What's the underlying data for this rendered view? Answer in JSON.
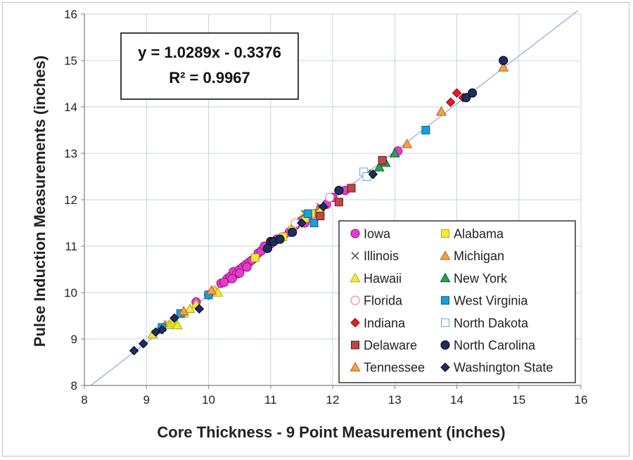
{
  "chart_data": {
    "type": "scatter",
    "xlabel": "Core Thickness - 9 Point Measurement (inches)",
    "ylabel": "Pulse Induction Measurements (inches)",
    "xlim": [
      8,
      16
    ],
    "ylim": [
      8,
      16
    ],
    "xticks": [
      "8",
      "9",
      "10",
      "11",
      "12",
      "13",
      "14",
      "15",
      "16"
    ],
    "yticks": [
      "8",
      "9",
      "10",
      "11",
      "12",
      "13",
      "14",
      "15",
      "16"
    ],
    "grid": true,
    "legend_position": "bottom-right",
    "annotation": {
      "equation": "y = 1.0289x - 0.3376",
      "r_squared": "R² = 0.9967"
    },
    "trendline": {
      "slope": 1.0289,
      "intercept": -0.3376,
      "x_range": [
        8.1,
        15.95
      ],
      "color": "#8ea9d8"
    },
    "series": [
      {
        "name": "Iowa",
        "marker": "circle",
        "color": "#e040c8",
        "filled": true,
        "points": [
          [
            10.2,
            10.2
          ],
          [
            10.3,
            10.3
          ],
          [
            10.35,
            10.35
          ],
          [
            10.4,
            10.45
          ],
          [
            10.45,
            10.4
          ],
          [
            10.5,
            10.5
          ],
          [
            10.55,
            10.55
          ],
          [
            10.6,
            10.6
          ],
          [
            10.65,
            10.65
          ],
          [
            10.7,
            10.7
          ],
          [
            10.8,
            10.85
          ],
          [
            10.85,
            10.9
          ],
          [
            10.9,
            11.0
          ],
          [
            11.0,
            11.05
          ],
          [
            11.1,
            11.15
          ],
          [
            11.2,
            11.2
          ],
          [
            11.3,
            11.3
          ],
          [
            11.4,
            11.45
          ],
          [
            11.5,
            11.55
          ],
          [
            11.6,
            11.6
          ],
          [
            11.7,
            11.7
          ],
          [
            11.8,
            11.8
          ],
          [
            11.9,
            11.9
          ],
          [
            12.0,
            12.05
          ],
          [
            12.2,
            12.2
          ],
          [
            13.05,
            13.05
          ],
          [
            10.5,
            10.42
          ],
          [
            10.38,
            10.3
          ],
          [
            10.62,
            10.55
          ],
          [
            10.25,
            10.22
          ],
          [
            9.8,
            9.8
          ],
          [
            10.0,
            9.95
          ],
          [
            11.55,
            11.5
          ],
          [
            10.75,
            10.75
          ]
        ]
      },
      {
        "name": "Alabama",
        "marker": "square",
        "color": "#f2ea3a",
        "filled": true,
        "points": [
          [
            10.75,
            10.75
          ],
          [
            11.2,
            11.2
          ],
          [
            11.35,
            11.35
          ],
          [
            11.55,
            11.6
          ],
          [
            11.65,
            11.7
          ],
          [
            11.8,
            11.75
          ]
        ]
      },
      {
        "name": "Illinois",
        "marker": "x",
        "color": "#555555",
        "filled": false,
        "points": [
          [
            11.55,
            11.7
          ],
          [
            11.8,
            11.85
          ]
        ]
      },
      {
        "name": "Michigan",
        "marker": "triangle",
        "color": "#f5a04a",
        "filled": true,
        "points": [
          [
            9.1,
            9.1
          ],
          [
            9.3,
            9.3
          ],
          [
            9.45,
            9.4
          ],
          [
            9.7,
            9.65
          ],
          [
            10.1,
            10.05
          ],
          [
            13.2,
            13.2
          ],
          [
            13.75,
            13.9
          ],
          [
            14.75,
            14.85
          ]
        ]
      },
      {
        "name": "Hawaii",
        "marker": "triangle",
        "color": "#f2ea3a",
        "filled": true,
        "points": [
          [
            9.1,
            9.1
          ],
          [
            9.2,
            9.2
          ],
          [
            9.35,
            9.3
          ],
          [
            9.4,
            9.35
          ],
          [
            9.45,
            9.4
          ],
          [
            9.5,
            9.3
          ],
          [
            9.6,
            9.55
          ],
          [
            9.7,
            9.65
          ],
          [
            9.8,
            9.75
          ],
          [
            10.1,
            10.05
          ],
          [
            10.15,
            10.0
          ]
        ]
      },
      {
        "name": "New York",
        "marker": "triangle",
        "color": "#2e9e5a",
        "filled": true,
        "points": [
          [
            12.6,
            12.55
          ],
          [
            12.75,
            12.7
          ],
          [
            12.85,
            12.8
          ],
          [
            13.0,
            13.0
          ]
        ]
      },
      {
        "name": "Florida",
        "marker": "circle",
        "color": "#e8707a",
        "filled": false,
        "points": [
          [
            11.4,
            11.5
          ],
          [
            11.95,
            12.05
          ]
        ]
      },
      {
        "name": "West Virginia",
        "marker": "square",
        "color": "#1e9ed8",
        "filled": true,
        "points": [
          [
            9.25,
            9.25
          ],
          [
            9.55,
            9.55
          ],
          [
            10.0,
            9.95
          ],
          [
            11.6,
            11.7
          ],
          [
            11.7,
            11.5
          ],
          [
            13.5,
            13.5
          ]
        ]
      },
      {
        "name": "Indiana",
        "marker": "diamond",
        "color": "#e01e2e",
        "filled": true,
        "points": [
          [
            13.9,
            14.1
          ],
          [
            14.0,
            14.3
          ],
          [
            14.1,
            14.2
          ]
        ]
      },
      {
        "name": "North Dakota",
        "marker": "square",
        "color": "#5aa8d8",
        "filled": false,
        "points": [
          [
            12.5,
            12.6
          ],
          [
            12.55,
            12.5
          ]
        ]
      },
      {
        "name": "Delaware",
        "marker": "square",
        "color": "#b84a4a",
        "filled": true,
        "points": [
          [
            11.8,
            11.65
          ],
          [
            12.1,
            11.95
          ],
          [
            12.3,
            12.25
          ],
          [
            12.8,
            12.85
          ]
        ]
      },
      {
        "name": "North Carolina",
        "marker": "circle",
        "color": "#1e2e5e",
        "filled": true,
        "points": [
          [
            11.0,
            11.1
          ],
          [
            11.05,
            11.1
          ],
          [
            11.15,
            11.15
          ],
          [
            11.35,
            11.3
          ],
          [
            12.1,
            12.2
          ],
          [
            14.15,
            14.2
          ],
          [
            14.25,
            14.3
          ],
          [
            14.75,
            15.0
          ],
          [
            10.95,
            10.95
          ]
        ]
      },
      {
        "name": "Tennessee",
        "marker": "triangle",
        "color": "#f5a04a",
        "filled": true,
        "points": [
          [
            9.6,
            9.6
          ],
          [
            10.05,
            10.05
          ],
          [
            13.75,
            13.9
          ]
        ]
      },
      {
        "name": "Washington State",
        "marker": "diamond",
        "color": "#1e2e5e",
        "filled": true,
        "points": [
          [
            8.8,
            8.75
          ],
          [
            8.95,
            8.9
          ],
          [
            9.15,
            9.15
          ],
          [
            9.25,
            9.2
          ],
          [
            9.45,
            9.45
          ],
          [
            9.85,
            9.65
          ],
          [
            11.5,
            11.5
          ],
          [
            11.85,
            11.85
          ],
          [
            12.65,
            12.55
          ]
        ]
      }
    ],
    "legend": [
      [
        "Iowa",
        "Alabama"
      ],
      [
        "Illinois",
        "Michigan"
      ],
      [
        "Hawaii",
        "New York"
      ],
      [
        "Florida",
        "West Virginia"
      ],
      [
        "Indiana",
        "North Dakota"
      ],
      [
        "Delaware",
        "North Carolina"
      ],
      [
        "Tennessee",
        "Washington State"
      ]
    ]
  }
}
